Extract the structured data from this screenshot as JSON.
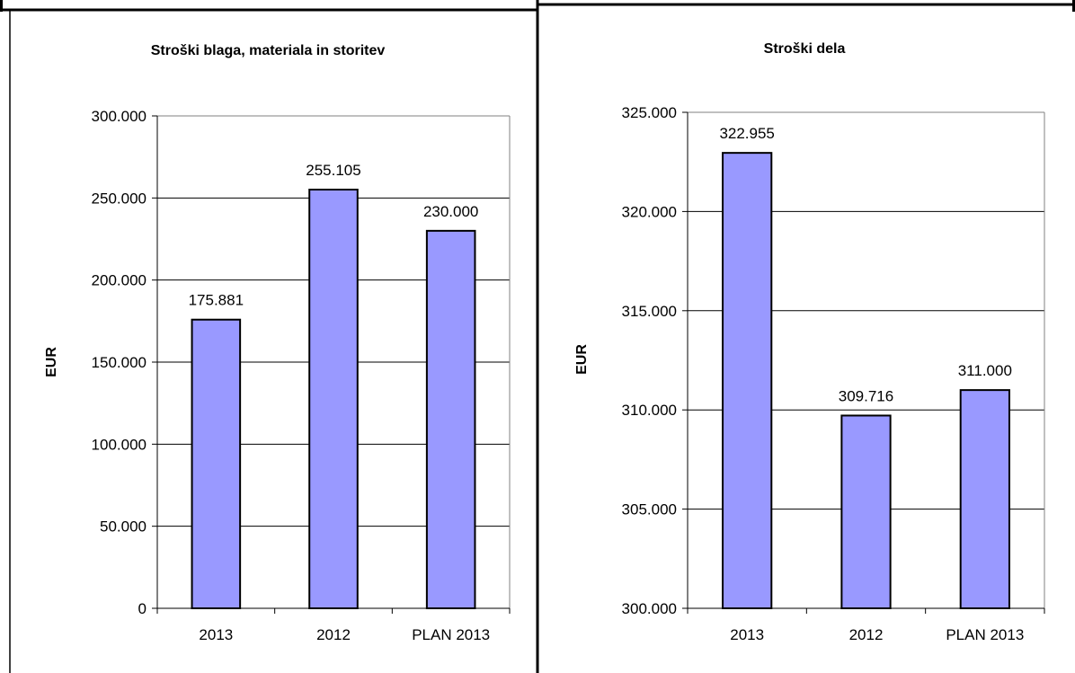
{
  "chart_data": [
    {
      "type": "bar",
      "title": "Stroški blaga, materiala in storitev",
      "ylabel": "EUR",
      "xlabel": "",
      "categories": [
        "2013",
        "2012",
        "PLAN 2013"
      ],
      "values": [
        175881,
        255105,
        230000
      ],
      "value_labels": [
        "175.881",
        "255.105",
        "230.000"
      ],
      "ylim": [
        0,
        300000
      ],
      "yticks": [
        0,
        50000,
        100000,
        150000,
        200000,
        250000,
        300000
      ],
      "ytick_labels": [
        "0",
        "50.000",
        "100.000",
        "150.000",
        "200.000",
        "250.000",
        "300.000"
      ],
      "grid": true,
      "bar_color": "#9999ff"
    },
    {
      "type": "bar",
      "title": "Stroški dela",
      "ylabel": "EUR",
      "xlabel": "",
      "categories": [
        "2013",
        "2012",
        "PLAN 2013"
      ],
      "values": [
        322955,
        309716,
        311000
      ],
      "value_labels": [
        "322.955",
        "309.716",
        "311.000"
      ],
      "ylim": [
        300000,
        325000
      ],
      "yticks": [
        300000,
        305000,
        310000,
        315000,
        320000,
        325000
      ],
      "ytick_labels": [
        "300.000",
        "305.000",
        "310.000",
        "315.000",
        "320.000",
        "325.000"
      ],
      "grid": true,
      "bar_color": "#9999ff"
    }
  ]
}
